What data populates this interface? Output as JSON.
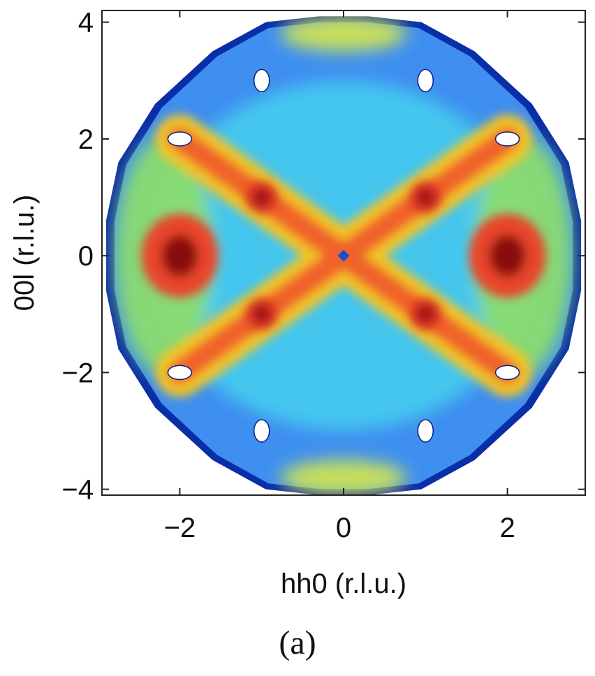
{
  "chart_data": {
    "type": "heatmap",
    "title": "",
    "xlabel": "hh0 (r.l.u.)",
    "ylabel": "00l (r.l.u.)",
    "xlim": [
      -2.95,
      2.95
    ],
    "ylim": [
      -4.1,
      4.2
    ],
    "x_ticks": [
      -2,
      0,
      2
    ],
    "x_tick_labels": [
      "−2",
      "0",
      "2"
    ],
    "y_ticks": [
      -4,
      -2,
      0,
      2,
      4
    ],
    "y_tick_labels": [
      "−4",
      "−2",
      "0",
      "2",
      "4"
    ],
    "colormap": "jet",
    "grid": false,
    "legend": "none",
    "features": {
      "ridges": [
        {
          "from": [
            -2.0,
            -2.0
          ],
          "to": [
            2.0,
            2.0
          ]
        },
        {
          "from": [
            -2.0,
            2.0
          ],
          "to": [
            2.0,
            -2.0
          ]
        }
      ],
      "maxima": [
        {
          "x": -2.0,
          "y": 0
        },
        {
          "x": 2.0,
          "y": 0
        },
        {
          "x": -1.0,
          "y": 1.0
        },
        {
          "x": 1.0,
          "y": 1.0
        },
        {
          "x": -1.0,
          "y": -1.0
        },
        {
          "x": 1.0,
          "y": -1.0
        }
      ],
      "minimum": {
        "x": 0,
        "y": 0
      },
      "masked_bragg_peaks": [
        {
          "x": -1.0,
          "y": 3.0
        },
        {
          "x": 1.0,
          "y": 3.0
        },
        {
          "x": -2.0,
          "y": 2.0
        },
        {
          "x": 2.0,
          "y": 2.0
        },
        {
          "x": -2.0,
          "y": -2.0
        },
        {
          "x": 2.0,
          "y": -2.0
        },
        {
          "x": -1.0,
          "y": -3.0
        },
        {
          "x": 1.0,
          "y": -3.0
        }
      ]
    }
  },
  "panel_label": "(a)"
}
